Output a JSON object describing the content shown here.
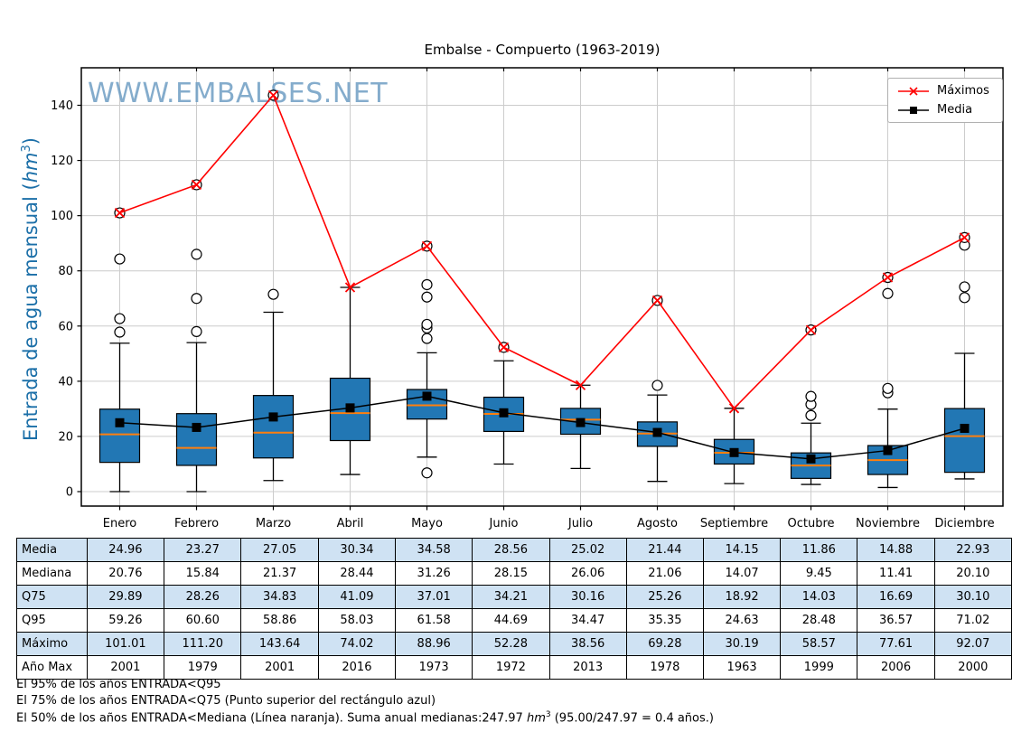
{
  "watermark": {
    "text": "WWW.EMBALSES.NET",
    "color": "#6f9ec4"
  },
  "legend": {
    "items": [
      {
        "label": "Máximos"
      },
      {
        "label": "Media"
      }
    ]
  },
  "axis": {
    "ylabel_pre": "Entrada de agua mensual (",
    "ylabel_unit": "hm",
    "ylabel_exp": "3",
    "ylabel_post": ")",
    "label_color": "#1b6fa8"
  },
  "chart_data": {
    "type": "boxplot+lines",
    "title": "Embalse - Compuerto (1963-2019)",
    "categories": [
      "Enero",
      "Febrero",
      "Marzo",
      "Abril",
      "Mayo",
      "Junio",
      "Julio",
      "Agosto",
      "Septiembre",
      "Octubre",
      "Noviembre",
      "Diciembre"
    ],
    "yticks": [
      0,
      20,
      40,
      60,
      80,
      100,
      120,
      140
    ],
    "ylim": [
      -5,
      154
    ],
    "grid": true,
    "legend_position": "top-right",
    "series": [
      {
        "name": "Máximos",
        "type": "line",
        "marker": "x",
        "color": "#ff0000",
        "values": [
          101.01,
          111.2,
          143.64,
          74.02,
          88.96,
          52.28,
          38.56,
          69.28,
          30.19,
          58.57,
          77.61,
          92.07
        ]
      },
      {
        "name": "Media",
        "type": "line",
        "marker": "square",
        "color": "#000000",
        "values": [
          24.96,
          23.27,
          27.05,
          30.34,
          34.58,
          28.56,
          25.02,
          21.44,
          14.15,
          11.86,
          14.88,
          22.93
        ]
      }
    ],
    "boxes": [
      {
        "month": "Enero",
        "q1": 10.6,
        "median": 20.76,
        "q3": 29.89,
        "whisker_low": 0,
        "whisker_high": 53.8,
        "outliers": [
          57.8,
          62.7,
          84.3,
          101.01
        ]
      },
      {
        "month": "Febrero",
        "q1": 9.5,
        "median": 15.84,
        "q3": 28.26,
        "whisker_low": 0,
        "whisker_high": 54.0,
        "outliers": [
          58.0,
          70.0,
          86.0,
          111.2
        ]
      },
      {
        "month": "Marzo",
        "q1": 12.2,
        "median": 21.37,
        "q3": 34.83,
        "whisker_low": 4.0,
        "whisker_high": 65.0,
        "outliers": [
          71.5,
          143.64
        ]
      },
      {
        "month": "Abril",
        "q1": 18.5,
        "median": 28.44,
        "q3": 41.09,
        "whisker_low": 6.2,
        "whisker_high": 74.02,
        "outliers": []
      },
      {
        "month": "Mayo",
        "q1": 26.3,
        "median": 31.26,
        "q3": 37.01,
        "whisker_low": 12.5,
        "whisker_high": 50.3,
        "outliers": [
          6.8,
          55.5,
          59.3,
          60.6,
          70.5,
          75.0,
          88.96
        ]
      },
      {
        "month": "Junio",
        "q1": 21.8,
        "median": 28.15,
        "q3": 34.21,
        "whisker_low": 10.0,
        "whisker_high": 47.4,
        "outliers": [
          52.28
        ]
      },
      {
        "month": "Julio",
        "q1": 20.8,
        "median": 26.06,
        "q3": 30.16,
        "whisker_low": 8.4,
        "whisker_high": 38.56,
        "outliers": []
      },
      {
        "month": "Agosto",
        "q1": 16.4,
        "median": 21.06,
        "q3": 25.26,
        "whisker_low": 3.7,
        "whisker_high": 35.0,
        "outliers": [
          38.5,
          69.28
        ]
      },
      {
        "month": "Septiembre",
        "q1": 10.0,
        "median": 14.07,
        "q3": 18.92,
        "whisker_low": 2.9,
        "whisker_high": 30.19,
        "outliers": []
      },
      {
        "month": "Octubre",
        "q1": 4.8,
        "median": 9.45,
        "q3": 14.03,
        "whisker_low": 2.6,
        "whisker_high": 24.8,
        "outliers": [
          27.6,
          31.6,
          34.5,
          58.57
        ]
      },
      {
        "month": "Noviembre",
        "q1": 6.2,
        "median": 11.41,
        "q3": 16.69,
        "whisker_low": 1.5,
        "whisker_high": 29.9,
        "outliers": [
          35.8,
          37.4,
          71.8,
          77.61
        ]
      },
      {
        "month": "Diciembre",
        "q1": 7.0,
        "median": 20.1,
        "q3": 30.1,
        "whisker_low": 4.6,
        "whisker_high": 50.1,
        "outliers": [
          70.3,
          74.2,
          89.3,
          92.07
        ]
      }
    ],
    "colors": {
      "box_fill": "#2277b4",
      "box_edge": "#000000",
      "median_line": "#ff7f0e",
      "mean_line": "#000000",
      "max_line": "#ff0000",
      "grid": "#cccccc"
    }
  },
  "table": {
    "alt_row_color": "#cfe2f3",
    "row_labels": [
      "Media",
      "Mediana",
      "Q75",
      "Q95",
      "Máximo",
      "Año Max"
    ],
    "rows": [
      [
        "24.96",
        "23.27",
        "27.05",
        "30.34",
        "34.58",
        "28.56",
        "25.02",
        "21.44",
        "14.15",
        "11.86",
        "14.88",
        "22.93"
      ],
      [
        "20.76",
        "15.84",
        "21.37",
        "28.44",
        "31.26",
        "28.15",
        "26.06",
        "21.06",
        "14.07",
        "9.45",
        "11.41",
        "20.10"
      ],
      [
        "29.89",
        "28.26",
        "34.83",
        "41.09",
        "37.01",
        "34.21",
        "30.16",
        "25.26",
        "18.92",
        "14.03",
        "16.69",
        "30.10"
      ],
      [
        "59.26",
        "60.60",
        "58.86",
        "58.03",
        "61.58",
        "44.69",
        "34.47",
        "35.35",
        "24.63",
        "28.48",
        "36.57",
        "71.02"
      ],
      [
        "101.01",
        "111.20",
        "143.64",
        "74.02",
        "88.96",
        "52.28",
        "38.56",
        "69.28",
        "30.19",
        "58.57",
        "77.61",
        "92.07"
      ],
      [
        "2001",
        "1979",
        "2001",
        "2016",
        "1973",
        "1972",
        "2013",
        "1978",
        "1963",
        "1999",
        "2006",
        "2000"
      ]
    ]
  },
  "footnotes": {
    "line1": "El 95% de los años ENTRADA<Q95",
    "line2": "El 75% de los años ENTRADA<Q75 (Punto superior del rectángulo azul)",
    "line3_pre": "El 50% de los años ENTRADA<Mediana (Línea naranja). Suma anual medianas:247.97 ",
    "line3_unit": "hm",
    "line3_exp": "3",
    "line3_post": " (95.00/247.97 = 0.4 años.)"
  }
}
